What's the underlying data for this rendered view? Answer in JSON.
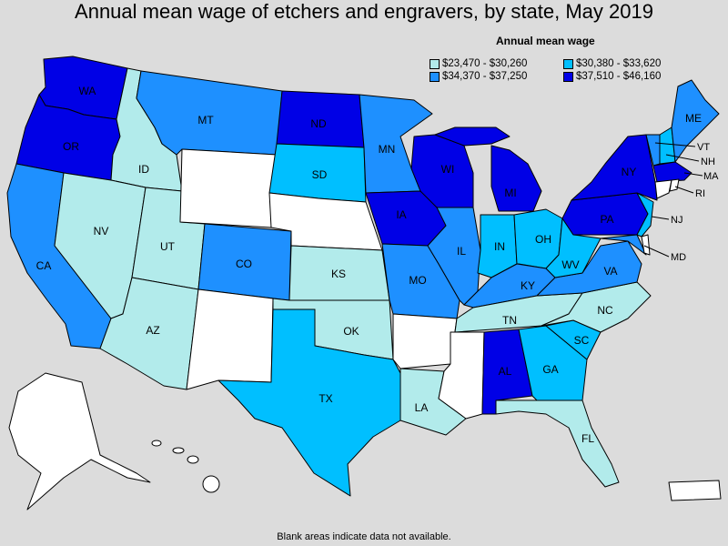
{
  "title": "Annual mean wage of etchers and engravers, by state, May 2019",
  "legend": {
    "title": "Annual mean wage",
    "items": [
      {
        "label": "$23,470 - $30,260",
        "color": "#b2ebeb"
      },
      {
        "label": "$30,380 - $33,620",
        "color": "#00bfff"
      },
      {
        "label": "$34,370 - $37,250",
        "color": "#1e90ff"
      },
      {
        "label": "$37,510 - $46,160",
        "color": "#0000e6"
      }
    ]
  },
  "footnote": "Blank areas indicate data not available.",
  "colors": {
    "na": "#ffffff",
    "c1": "#b2ebeb",
    "c2": "#00bfff",
    "c3": "#1e90ff",
    "c4": "#0000e6"
  },
  "states": {
    "WA": "WA",
    "OR": "OR",
    "CA": "CA",
    "ID": "ID",
    "NV": "NV",
    "UT": "UT",
    "AZ": "AZ",
    "MT": "MT",
    "CO": "CO",
    "ND": "ND",
    "SD": "SD",
    "KS": "KS",
    "OK": "OK",
    "TX": "TX",
    "MN": "MN",
    "IA": "IA",
    "MO": "MO",
    "LA": "LA",
    "WI": "WI",
    "IL": "IL",
    "MI": "MI",
    "IN": "IN",
    "OH": "OH",
    "KY": "KY",
    "TN": "TN",
    "AL": "AL",
    "GA": "GA",
    "FL": "FL",
    "SC": "SC",
    "NC": "NC",
    "VA": "VA",
    "WV": "WV",
    "PA": "PA",
    "NY": "NY",
    "ME": "ME",
    "VT": "VT",
    "NH": "NH",
    "MA": "MA",
    "RI": "RI",
    "NJ": "NJ",
    "MD": "MD"
  }
}
